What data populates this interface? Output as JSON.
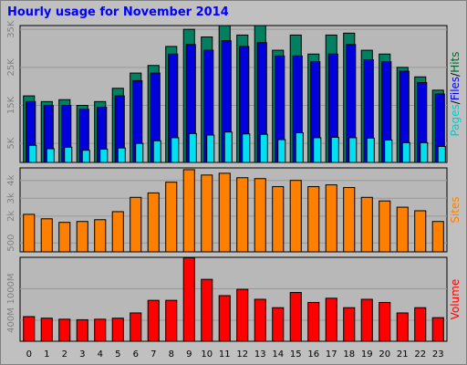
{
  "chart_data": {
    "type": "bar",
    "title": "Hourly usage for November 2014",
    "categories": [
      "0",
      "1",
      "2",
      "3",
      "4",
      "5",
      "6",
      "7",
      "8",
      "9",
      "10",
      "11",
      "12",
      "13",
      "14",
      "15",
      "16",
      "17",
      "18",
      "19",
      "20",
      "21",
      "22",
      "23"
    ],
    "panels": [
      {
        "id": "top",
        "label_parts": [
          "Pages",
          "/",
          "Files",
          "/",
          "Hits"
        ],
        "label_colors": [
          "#00cccc",
          "#000000",
          "#0000ff",
          "#000000",
          "#006633"
        ],
        "ylim": [
          0,
          36000
        ],
        "yticks": [
          {
            "value": 5000,
            "label": "5K"
          },
          {
            "value": 15000,
            "label": "15K"
          },
          {
            "value": 25000,
            "label": "25K"
          },
          {
            "value": 35000,
            "label": "35K"
          }
        ],
        "series": [
          {
            "name": "Hits",
            "color": "#008060",
            "values": [
              17500,
              16000,
              16500,
              15000,
              16000,
              19500,
              23500,
              25500,
              30500,
              35000,
              33000,
              36000,
              33500,
              36000,
              29500,
              33500,
              28500,
              33500,
              34000,
              29500,
              28500,
              25000,
              22500,
              19000
            ]
          },
          {
            "name": "Files",
            "color": "#0000dd",
            "values": [
              16000,
              15000,
              15000,
              14000,
              14500,
              17500,
              21500,
              23500,
              28500,
              31000,
              29500,
              32000,
              30500,
              31500,
              28000,
              28000,
              26500,
              28500,
              31000,
              27000,
              26500,
              24000,
              21000,
              18000
            ]
          },
          {
            "name": "Pages",
            "color": "#00e0f0",
            "values": [
              4500,
              3600,
              4000,
              3200,
              3500,
              3800,
              5000,
              5700,
              6500,
              7600,
              7200,
              8000,
              7500,
              7400,
              6000,
              7800,
              6500,
              6600,
              6500,
              6400,
              5900,
              5200,
              5200,
              4200
            ]
          }
        ]
      },
      {
        "id": "middle",
        "label_parts": [
          "Sites"
        ],
        "label_colors": [
          "#ff8000"
        ],
        "ylim": [
          0,
          4700
        ],
        "yticks": [
          {
            "value": 500,
            "label": "500"
          },
          {
            "value": 2000,
            "label": "2k"
          },
          {
            "value": 3000,
            "label": "3k"
          },
          {
            "value": 4000,
            "label": "4k"
          }
        ],
        "series": [
          {
            "name": "Sites",
            "color": "#ff8000",
            "values": [
              2100,
              1850,
              1650,
              1700,
              1800,
              2250,
              3050,
              3300,
              3900,
              4600,
              4300,
              4400,
              4150,
              4100,
              3650,
              4000,
              3650,
              3750,
              3600,
              3050,
              2850,
              2500,
              2300,
              1700
            ]
          }
        ]
      },
      {
        "id": "bottom",
        "label_parts": [
          "Volume"
        ],
        "label_colors": [
          "#ff0000"
        ],
        "ylim": [
          0,
          1600
        ],
        "yticks": [
          {
            "value": 400,
            "label": "400M"
          },
          {
            "value": 1000,
            "label": "1000M"
          }
        ],
        "series": [
          {
            "name": "Volume",
            "color": "#ff0000",
            "values": [
              470,
              440,
              420,
              410,
              420,
              440,
              540,
              780,
              780,
              1590,
              1180,
              870,
              990,
              800,
              640,
              930,
              740,
              820,
              640,
              800,
              740,
              540,
              640,
              450
            ]
          }
        ]
      }
    ]
  }
}
